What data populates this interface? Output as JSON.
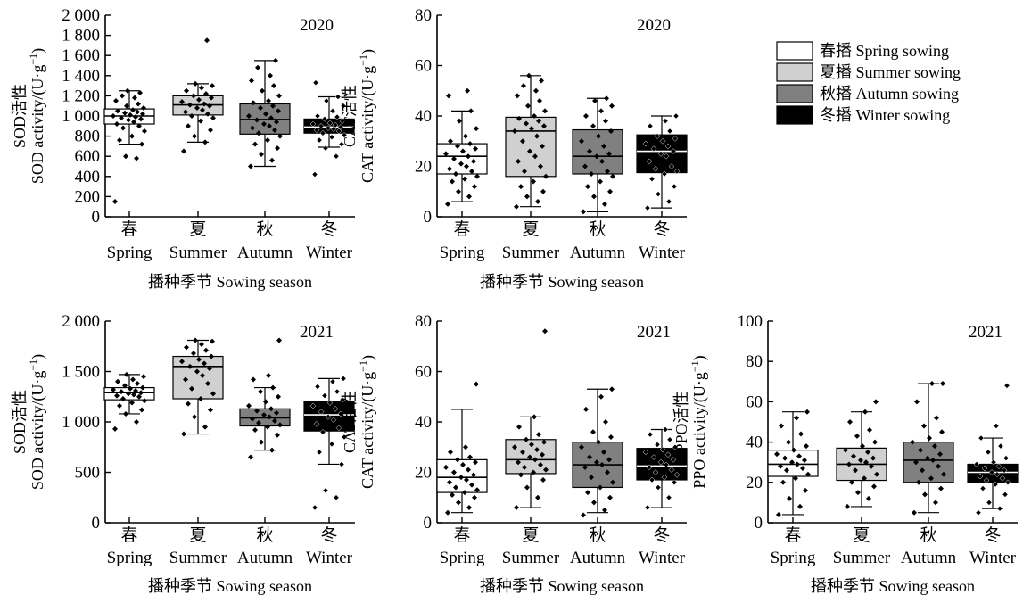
{
  "legend": [
    {
      "label": "春播 Spring sowing",
      "fill": "#ffffff",
      "median": "#000000"
    },
    {
      "label": "夏播 Summer sowing",
      "fill": "#d0d0d0",
      "median": "#000000"
    },
    {
      "label": "秋播 Autumn sowing",
      "fill": "#808080",
      "median": "#000000"
    },
    {
      "label": "冬播 Winter sowing",
      "fill": "#000000",
      "median": "#ffffff"
    }
  ],
  "chart_data": [
    {
      "type": "box",
      "year": "2020",
      "ylabel_cn": "SOD活性",
      "ylabel_en": "SOD activity/(U·g",
      "xlabel": "播种季节 Sowing season",
      "categories_cn": [
        "春",
        "夏",
        "秋",
        "冬"
      ],
      "categories_en": [
        "Spring",
        "Summer",
        "Autumn",
        "Winter"
      ],
      "ylim": [
        0,
        2000
      ],
      "yticks": [
        0,
        200,
        400,
        600,
        800,
        1000,
        1200,
        1400,
        1600,
        1800,
        2000
      ],
      "ytick_labels": [
        "0",
        "200",
        "400",
        "600",
        "800",
        "1 000",
        "1 200",
        "1 400",
        "1 600",
        "1 800",
        "2 000"
      ],
      "boxes": [
        {
          "min": 720,
          "q1": 920,
          "median": 1000,
          "q3": 1070,
          "max": 1250
        },
        {
          "min": 740,
          "q1": 1010,
          "median": 1110,
          "q3": 1200,
          "max": 1320
        },
        {
          "min": 500,
          "q1": 820,
          "median": 965,
          "q3": 1120,
          "max": 1550
        },
        {
          "min": 690,
          "q1": 830,
          "median": 890,
          "q3": 970,
          "max": 1190
        }
      ],
      "points": [
        [
          150,
          580,
          600,
          720,
          760,
          800,
          850,
          880,
          900,
          920,
          940,
          960,
          970,
          980,
          990,
          1000,
          1010,
          1020,
          1030,
          1040,
          1050,
          1060,
          1080,
          1100,
          1120,
          1150,
          1180,
          1200,
          1230,
          1250
        ],
        [
          650,
          740,
          800,
          860,
          900,
          950,
          980,
          1000,
          1020,
          1040,
          1060,
          1080,
          1100,
          1110,
          1120,
          1140,
          1160,
          1180,
          1200,
          1220,
          1250,
          1280,
          1300,
          1320,
          1750
        ],
        [
          500,
          560,
          620,
          680,
          720,
          760,
          800,
          830,
          860,
          880,
          900,
          920,
          940,
          960,
          980,
          1000,
          1020,
          1050,
          1080,
          1100,
          1130,
          1150,
          1200,
          1250,
          1300,
          1350,
          1400,
          1480,
          1550
        ],
        [
          420,
          600,
          680,
          720,
          760,
          790,
          810,
          830,
          850,
          860,
          870,
          880,
          890,
          900,
          910,
          920,
          930,
          950,
          970,
          990,
          1000,
          1050,
          1100,
          1150,
          1190,
          1330
        ]
      ]
    },
    {
      "type": "box",
      "year": "2020",
      "ylabel_cn": "CAT活性",
      "ylabel_en": "CAT activity/(U·g",
      "xlabel": "播种季节 Sowing season",
      "categories_cn": [
        "春",
        "夏",
        "秋",
        "冬"
      ],
      "categories_en": [
        "Spring",
        "Summer",
        "Autumn",
        "Winter"
      ],
      "ylim": [
        0,
        80
      ],
      "yticks": [
        0,
        20,
        40,
        60,
        80
      ],
      "ytick_labels": [
        "0",
        "20",
        "40",
        "60",
        "80"
      ],
      "boxes": [
        {
          "min": 6,
          "q1": 17,
          "median": 24,
          "q3": 29,
          "max": 42
        },
        {
          "min": 4,
          "q1": 16,
          "median": 34,
          "q3": 39.5,
          "max": 56
        },
        {
          "min": 2,
          "q1": 17,
          "median": 24,
          "q3": 34.5,
          "max": 47
        },
        {
          "min": 3.5,
          "q1": 17.5,
          "median": 26,
          "q3": 32.5,
          "max": 40
        }
      ],
      "points": [
        [
          5,
          8,
          10,
          12,
          14,
          15,
          16,
          17,
          18,
          19,
          20,
          21,
          22,
          23,
          24,
          25,
          26,
          27,
          28,
          29,
          30,
          32,
          35,
          38,
          42,
          48,
          50
        ],
        [
          4,
          6,
          8,
          10,
          12,
          14,
          16,
          18,
          20,
          22,
          24,
          26,
          28,
          30,
          32,
          34,
          35,
          36,
          37,
          38,
          39,
          40,
          42,
          44,
          46,
          48,
          50,
          52,
          54,
          56
        ],
        [
          2,
          5,
          8,
          10,
          12,
          14,
          16,
          17,
          18,
          20,
          22,
          24,
          25,
          26,
          28,
          30,
          32,
          34,
          36,
          38,
          40,
          42,
          44,
          46,
          47
        ],
        [
          3.5,
          6,
          9,
          12,
          15,
          17,
          18,
          19,
          20,
          22,
          24,
          25,
          26,
          27,
          28,
          29,
          30,
          31,
          32,
          34,
          36,
          38,
          40
        ]
      ]
    },
    {
      "type": "box",
      "year": "2021",
      "ylabel_cn": "SOD活性",
      "ylabel_en": "SOD activity/(U·g",
      "xlabel": "播种季节 Sowing season",
      "categories_cn": [
        "春",
        "夏",
        "秋",
        "冬"
      ],
      "categories_en": [
        "Spring",
        "Summer",
        "Autumn",
        "Winter"
      ],
      "ylim": [
        0,
        2000
      ],
      "yticks": [
        0,
        500,
        1000,
        1500,
        2000
      ],
      "ytick_labels": [
        "0",
        "500",
        "1 000",
        "1 500",
        "2 000"
      ],
      "boxes": [
        {
          "min": 1080,
          "q1": 1220,
          "median": 1290,
          "q3": 1340,
          "max": 1470
        },
        {
          "min": 880,
          "q1": 1230,
          "median": 1550,
          "q3": 1650,
          "max": 1810
        },
        {
          "min": 720,
          "q1": 960,
          "median": 1040,
          "q3": 1130,
          "max": 1340
        },
        {
          "min": 580,
          "q1": 910,
          "median": 1070,
          "q3": 1200,
          "max": 1430
        }
      ],
      "points": [
        [
          930,
          1000,
          1080,
          1120,
          1160,
          1190,
          1210,
          1230,
          1250,
          1260,
          1270,
          1280,
          1290,
          1300,
          1310,
          1320,
          1330,
          1340,
          1360,
          1380,
          1400,
          1420,
          1450,
          1470
        ],
        [
          880,
          950,
          1050,
          1120,
          1180,
          1230,
          1280,
          1330,
          1380,
          1420,
          1460,
          1500,
          1530,
          1550,
          1580,
          1600,
          1620,
          1650,
          1680,
          1710,
          1740,
          1770,
          1800,
          1810
        ],
        [
          650,
          720,
          800,
          870,
          920,
          950,
          970,
          990,
          1010,
          1030,
          1050,
          1070,
          1090,
          1110,
          1130,
          1160,
          1200,
          1250,
          1300,
          1340,
          1420,
          1460,
          1810
        ],
        [
          150,
          250,
          320,
          580,
          700,
          780,
          850,
          900,
          940,
          980,
          1020,
          1050,
          1080,
          1100,
          1130,
          1160,
          1190,
          1220,
          1260,
          1300,
          1350,
          1400,
          1430
        ]
      ]
    },
    {
      "type": "box",
      "year": "2021",
      "ylabel_cn": "CAT活性",
      "ylabel_en": "CAT activity/(U·g",
      "xlabel": "播种季节 Sowing season",
      "categories_cn": [
        "春",
        "夏",
        "秋",
        "冬"
      ],
      "categories_en": [
        "Spring",
        "Summer",
        "Autumn",
        "Winter"
      ],
      "ylim": [
        0,
        80
      ],
      "yticks": [
        0,
        20,
        40,
        60,
        80
      ],
      "ytick_labels": [
        "0",
        "20",
        "40",
        "60",
        "80"
      ],
      "boxes": [
        {
          "min": 4,
          "q1": 12,
          "median": 18,
          "q3": 25,
          "max": 45
        },
        {
          "min": 6,
          "q1": 19.5,
          "median": 25,
          "q3": 33,
          "max": 42
        },
        {
          "min": 4,
          "q1": 14,
          "median": 23,
          "q3": 32,
          "max": 53
        },
        {
          "min": 6,
          "q1": 17,
          "median": 22.5,
          "q3": 29.5,
          "max": 37
        }
      ],
      "points": [
        [
          4,
          6,
          8,
          10,
          11,
          12,
          13,
          14,
          15,
          16,
          17,
          18,
          19,
          20,
          21,
          22,
          23,
          24,
          25,
          26,
          28,
          30,
          55
        ],
        [
          6,
          10,
          14,
          17,
          19,
          20,
          21,
          22,
          23,
          24,
          25,
          26,
          27,
          28,
          29,
          30,
          31,
          32,
          33,
          35,
          38,
          42,
          76
        ],
        [
          3,
          5,
          8,
          10,
          12,
          14,
          16,
          18,
          20,
          22,
          23,
          24,
          25,
          26,
          28,
          30,
          32,
          34,
          36,
          40,
          45,
          50,
          53
        ],
        [
          6,
          10,
          14,
          16,
          17,
          18,
          19,
          20,
          21,
          22,
          23,
          24,
          25,
          26,
          27,
          28,
          29,
          30,
          31,
          33,
          35,
          37
        ]
      ]
    },
    {
      "type": "box",
      "year": "2021",
      "ylabel_cn": "PPO活性",
      "ylabel_en": "PPO activity/(U·g",
      "xlabel": "播种季节 Sowing season",
      "categories_cn": [
        "春",
        "夏",
        "秋",
        "冬"
      ],
      "categories_en": [
        "Spring",
        "Summer",
        "Autumn",
        "Winter"
      ],
      "ylim": [
        0,
        100
      ],
      "yticks": [
        0,
        20,
        40,
        60,
        80,
        100
      ],
      "ytick_labels": [
        "0",
        "20",
        "40",
        "60",
        "80",
        "100"
      ],
      "boxes": [
        {
          "min": 4,
          "q1": 23,
          "median": 29,
          "q3": 36,
          "max": 55
        },
        {
          "min": 8,
          "q1": 21,
          "median": 29,
          "q3": 37,
          "max": 55
        },
        {
          "min": 5,
          "q1": 20,
          "median": 31,
          "q3": 40,
          "max": 69
        },
        {
          "min": 7,
          "q1": 20,
          "median": 25,
          "q3": 29,
          "max": 42
        }
      ],
      "points": [
        [
          4,
          8,
          12,
          16,
          20,
          22,
          24,
          26,
          27,
          28,
          29,
          30,
          31,
          32,
          33,
          34,
          36,
          38,
          40,
          44,
          48,
          52,
          55
        ],
        [
          8,
          12,
          15,
          18,
          20,
          22,
          24,
          26,
          28,
          29,
          30,
          31,
          32,
          33,
          35,
          36,
          38,
          40,
          43,
          46,
          50,
          55,
          60
        ],
        [
          5,
          10,
          14,
          17,
          20,
          22,
          24,
          26,
          28,
          30,
          31,
          32,
          34,
          36,
          38,
          40,
          42,
          45,
          48,
          52,
          60,
          69,
          69
        ],
        [
          5,
          7,
          10,
          14,
          17,
          19,
          20,
          21,
          22,
          23,
          24,
          25,
          26,
          27,
          28,
          29,
          30,
          32,
          35,
          38,
          42,
          48,
          68
        ]
      ]
    }
  ]
}
